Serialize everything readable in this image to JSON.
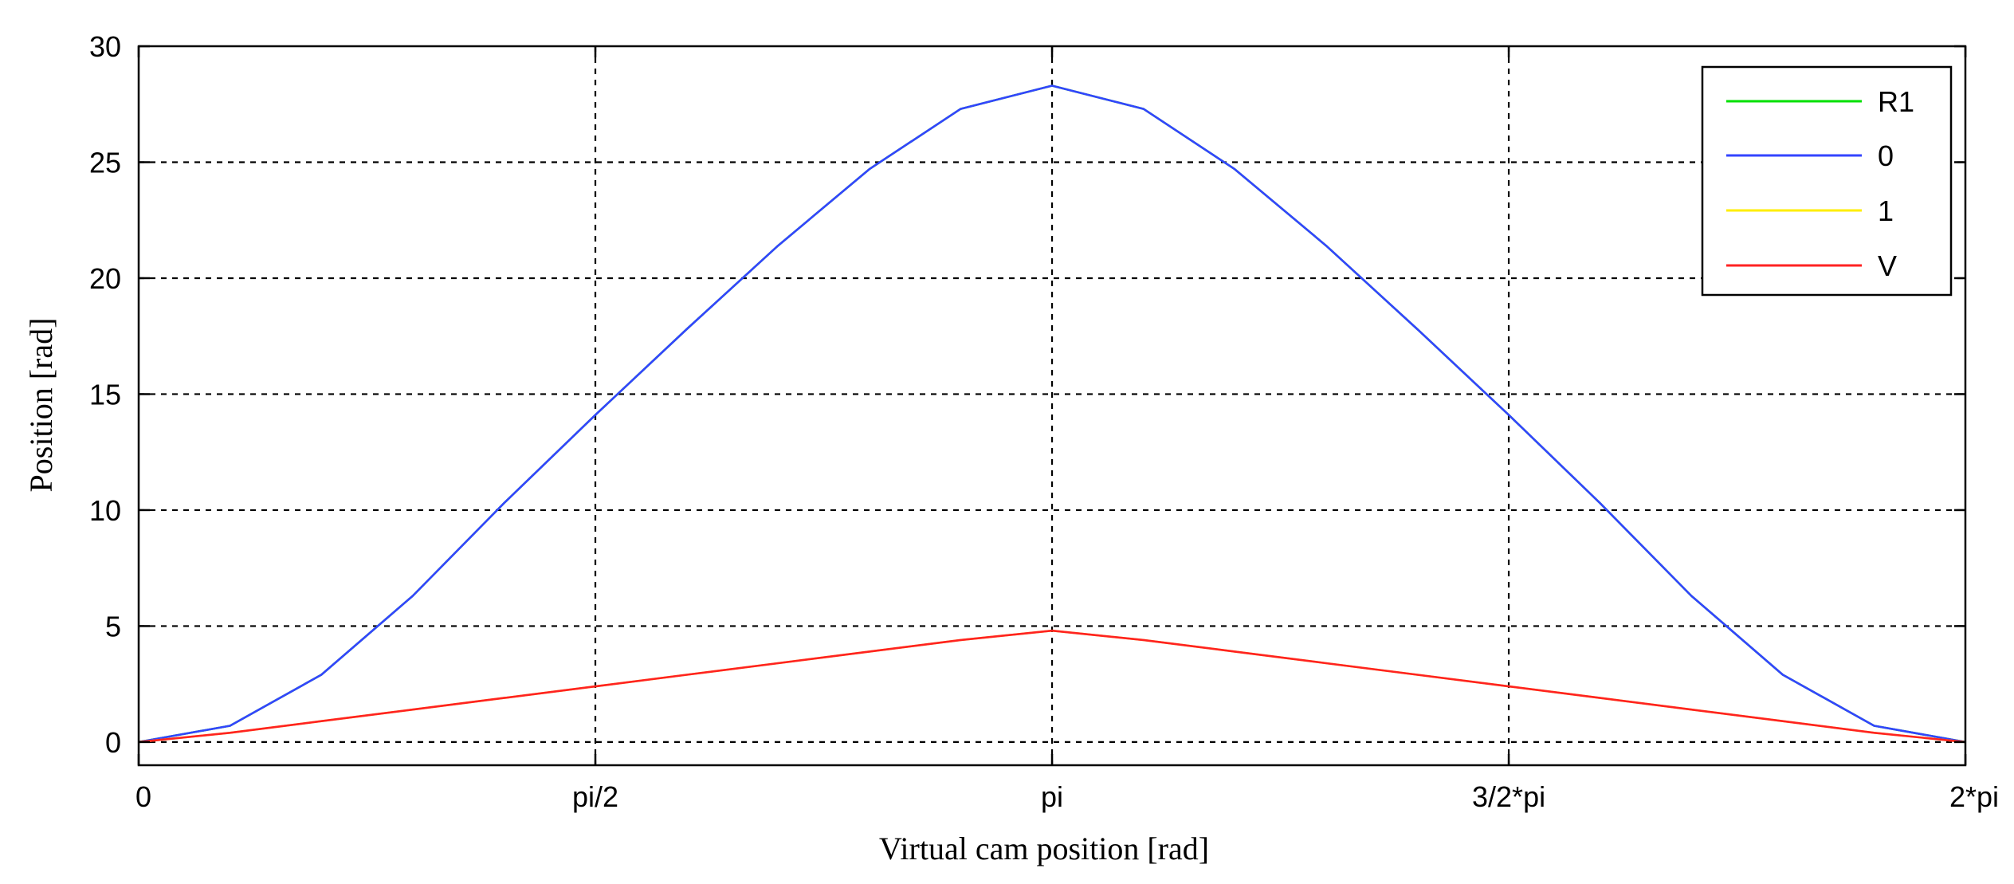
{
  "chart_data": {
    "type": "line",
    "title": "",
    "xlabel": "Virtual cam position [rad]",
    "ylabel": "Position [rad]",
    "xlim": [
      0,
      6.283
    ],
    "ylim": [
      -1,
      30
    ],
    "x_tick_values": [
      0,
      1.5708,
      3.1416,
      4.7124,
      6.2832
    ],
    "x_tick_labels": [
      "0",
      "pi/2",
      "pi",
      "3/2*pi",
      "2*pi"
    ],
    "y_tick_values": [
      0,
      5,
      10,
      15,
      20,
      25,
      30
    ],
    "y_tick_labels": [
      "0",
      "5",
      "10",
      "15",
      "20",
      "25",
      "30"
    ],
    "grid": true,
    "legend_position": "top-right",
    "x": [
      0,
      0.3142,
      0.6283,
      0.9425,
      1.2566,
      1.5708,
      1.885,
      2.1991,
      2.5133,
      2.8274,
      3.1416,
      3.4558,
      3.7699,
      4.0841,
      4.3982,
      4.7124,
      5.0265,
      5.3407,
      5.6549,
      5.969,
      6.2832
    ],
    "series": [
      {
        "name": "R1",
        "color": "#00e000",
        "values": [
          0,
          0.7,
          2.9,
          6.3,
          10.3,
          14.1,
          17.8,
          21.4,
          24.7,
          27.3,
          28.3,
          27.3,
          24.7,
          21.4,
          17.8,
          14.1,
          10.3,
          6.3,
          2.9,
          0.7,
          0
        ]
      },
      {
        "name": "0",
        "color": "#3344ff",
        "values": [
          0,
          0.7,
          2.9,
          6.3,
          10.3,
          14.1,
          17.8,
          21.4,
          24.7,
          27.3,
          28.3,
          27.3,
          24.7,
          21.4,
          17.8,
          14.1,
          10.3,
          6.3,
          2.9,
          0.7,
          0
        ]
      },
      {
        "name": "1",
        "color": "#ffee00",
        "values": [
          0,
          0.4,
          0.9,
          1.4,
          1.9,
          2.4,
          2.9,
          3.4,
          3.9,
          4.4,
          4.8,
          4.4,
          3.9,
          3.4,
          2.9,
          2.4,
          1.9,
          1.4,
          0.9,
          0.4,
          0
        ]
      },
      {
        "name": "V",
        "color": "#ff2222",
        "values": [
          0,
          0.4,
          0.9,
          1.4,
          1.9,
          2.4,
          2.9,
          3.4,
          3.9,
          4.4,
          4.8,
          4.4,
          3.9,
          3.4,
          2.9,
          2.4,
          1.9,
          1.4,
          0.9,
          0.4,
          0
        ]
      }
    ]
  }
}
